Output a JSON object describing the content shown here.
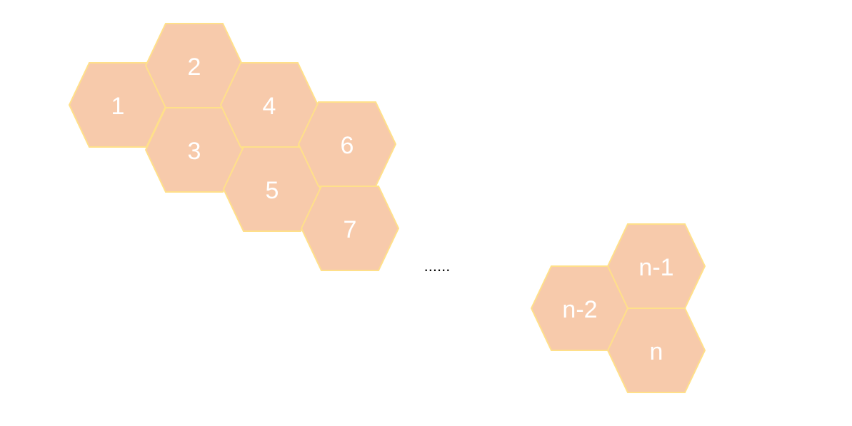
{
  "colors": {
    "hex_fill": "#f7caab",
    "hex_stroke": "#ffe08a",
    "label": "#ffffff",
    "ellipsis": "#000000"
  },
  "cells": [
    {
      "label": "1"
    },
    {
      "label": "2"
    },
    {
      "label": "3"
    },
    {
      "label": "4"
    },
    {
      "label": "5"
    },
    {
      "label": "6"
    },
    {
      "label": "7"
    },
    {
      "label": "n-2"
    },
    {
      "label": "n-1"
    },
    {
      "label": "n"
    }
  ],
  "ellipsis": "......"
}
